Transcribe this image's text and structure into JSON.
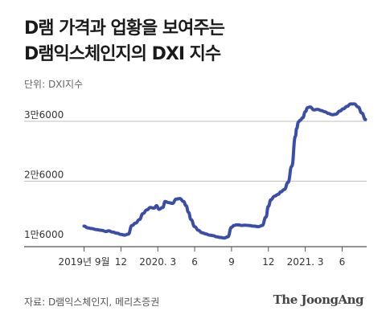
{
  "title_lines": [
    "D램 가격과 업황을 보여주는",
    "D램익스체인지의 DXI 지수"
  ],
  "unit_label": "단위: DXI지수",
  "footer": {
    "source": "자료: D램익스체인지, 메리츠증권",
    "brand": "The JoongAng"
  },
  "colors": {
    "line": "#3a4ea8",
    "grid": "#bfbfbf",
    "text": "#333333"
  },
  "chart_data": {
    "type": "line",
    "title": "D램 가격과 업황을 보여주는 D램익스체인지의 DXI 지수",
    "ylabel": "단위: DXI지수",
    "y_ticks": [
      {
        "value": 16000,
        "label": "1만6000"
      },
      {
        "value": 26000,
        "label": "2만6000"
      },
      {
        "value": 36000,
        "label": "3만6000"
      }
    ],
    "ylim": [
      16000,
      36000
    ],
    "grid": "horizontal",
    "x_ticks": [
      {
        "month": 0,
        "label": "2019년 9월"
      },
      {
        "month": 3,
        "label": "12"
      },
      {
        "month": 6,
        "label": "2020. 3"
      },
      {
        "month": 9,
        "label": "6"
      },
      {
        "month": 12,
        "label": "9"
      },
      {
        "month": 15,
        "label": "12"
      },
      {
        "month": 18,
        "label": "2021. 3"
      },
      {
        "month": 21,
        "label": "6"
      }
    ],
    "xlim": [
      -0.1,
      23.0
    ],
    "series": [
      {
        "x": [
          0,
          0.3,
          0.6,
          1.0,
          1.4,
          1.8,
          2.0,
          2.3,
          2.7,
          3.0,
          3.3,
          3.6,
          3.9,
          4.2,
          4.5,
          4.8,
          5.1,
          5.4,
          5.7,
          5.9,
          6.1,
          6.4,
          6.6,
          6.9,
          7.2,
          7.5,
          7.8,
          8.1,
          8.3,
          8.5,
          8.7,
          9.0,
          9.3,
          9.6,
          9.9,
          10.2,
          10.5,
          10.8,
          11.1,
          11.4,
          11.7,
          12.0,
          12.2,
          12.4,
          12.6,
          12.8,
          13.1,
          13.4,
          13.8,
          14.2,
          14.5,
          14.8,
          15.0,
          15.2,
          15.5,
          15.8,
          16.0,
          16.3,
          16.6,
          16.9,
          17.2,
          17.3,
          17.45,
          17.6,
          17.8,
          18.0,
          18.2,
          18.4,
          18.7,
          19.0,
          19.3,
          19.6,
          19.9,
          20.2,
          20.5,
          20.8,
          21.1,
          21.4,
          21.7,
          22.0,
          22.3,
          22.6,
          22.9
        ],
        "y": [
          18500,
          18200,
          18100,
          17900,
          17800,
          17600,
          17700,
          17500,
          17300,
          17100,
          17000,
          17150,
          18600,
          19000,
          19600,
          20600,
          21200,
          21600,
          21500,
          21900,
          21300,
          21600,
          22600,
          22400,
          22300,
          23000,
          23100,
          22600,
          21900,
          20800,
          19600,
          18400,
          17800,
          17400,
          17200,
          17000,
          16900,
          16700,
          16600,
          16500,
          16700,
          18300,
          18600,
          18700,
          18700,
          18600,
          18650,
          18600,
          18500,
          18400,
          18600,
          20000,
          21800,
          22900,
          23500,
          23800,
          24200,
          24600,
          25800,
          28500,
          33500,
          34800,
          35900,
          36200,
          36600,
          37600,
          38300,
          38400,
          37900,
          38000,
          37800,
          37600,
          37300,
          37100,
          37200,
          37700,
          38100,
          38500,
          38900,
          38900,
          38400,
          37400,
          36300
        ]
      }
    ]
  }
}
